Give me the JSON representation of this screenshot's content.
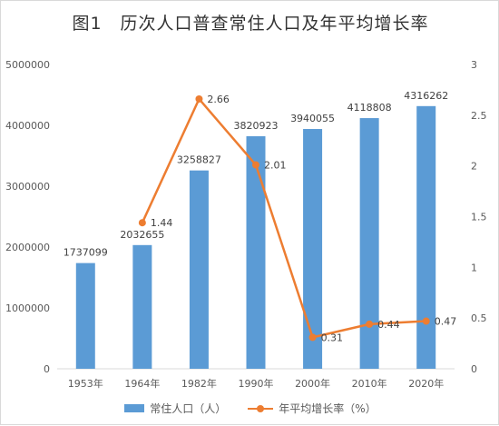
{
  "title": "图1　历次人口普查常住人口及年平均增长率",
  "chart_data": {
    "type": "bar",
    "categories": [
      "1953年",
      "1964年",
      "1982年",
      "1990年",
      "2000年",
      "2010年",
      "2020年"
    ],
    "series": [
      {
        "name": "常住人口（人）",
        "type": "bar",
        "axis": "left",
        "values": [
          1737099,
          2032655,
          3258827,
          3820923,
          3940055,
          4118808,
          4316262
        ],
        "color": "#5b9bd5"
      },
      {
        "name": "年平均增长率（%）",
        "type": "line",
        "axis": "right",
        "values": [
          null,
          1.44,
          2.66,
          2.01,
          0.31,
          0.44,
          0.47
        ],
        "color": "#ed7d31"
      }
    ],
    "y_left": {
      "min": 0,
      "max": 5000000,
      "ticks": [
        "0",
        "1000000",
        "2000000",
        "3000000",
        "4000000",
        "5000000"
      ]
    },
    "y_right": {
      "min": 0,
      "max": 3,
      "ticks": [
        "0",
        "0.5",
        "1",
        "1.5",
        "2",
        "2.5",
        "3"
      ]
    },
    "bar_labels": [
      "1737099",
      "2032655",
      "3258827",
      "3820923",
      "3940055",
      "4118808",
      "4316262"
    ],
    "line_labels": [
      "",
      "1.44",
      "2.66",
      "2.01",
      "0.31",
      "0.44",
      "0.47"
    ],
    "grid": false,
    "legend_position": "bottom"
  },
  "legend": {
    "bar_label": "常住人口（人）",
    "line_label": "年平均增长率（%）"
  }
}
